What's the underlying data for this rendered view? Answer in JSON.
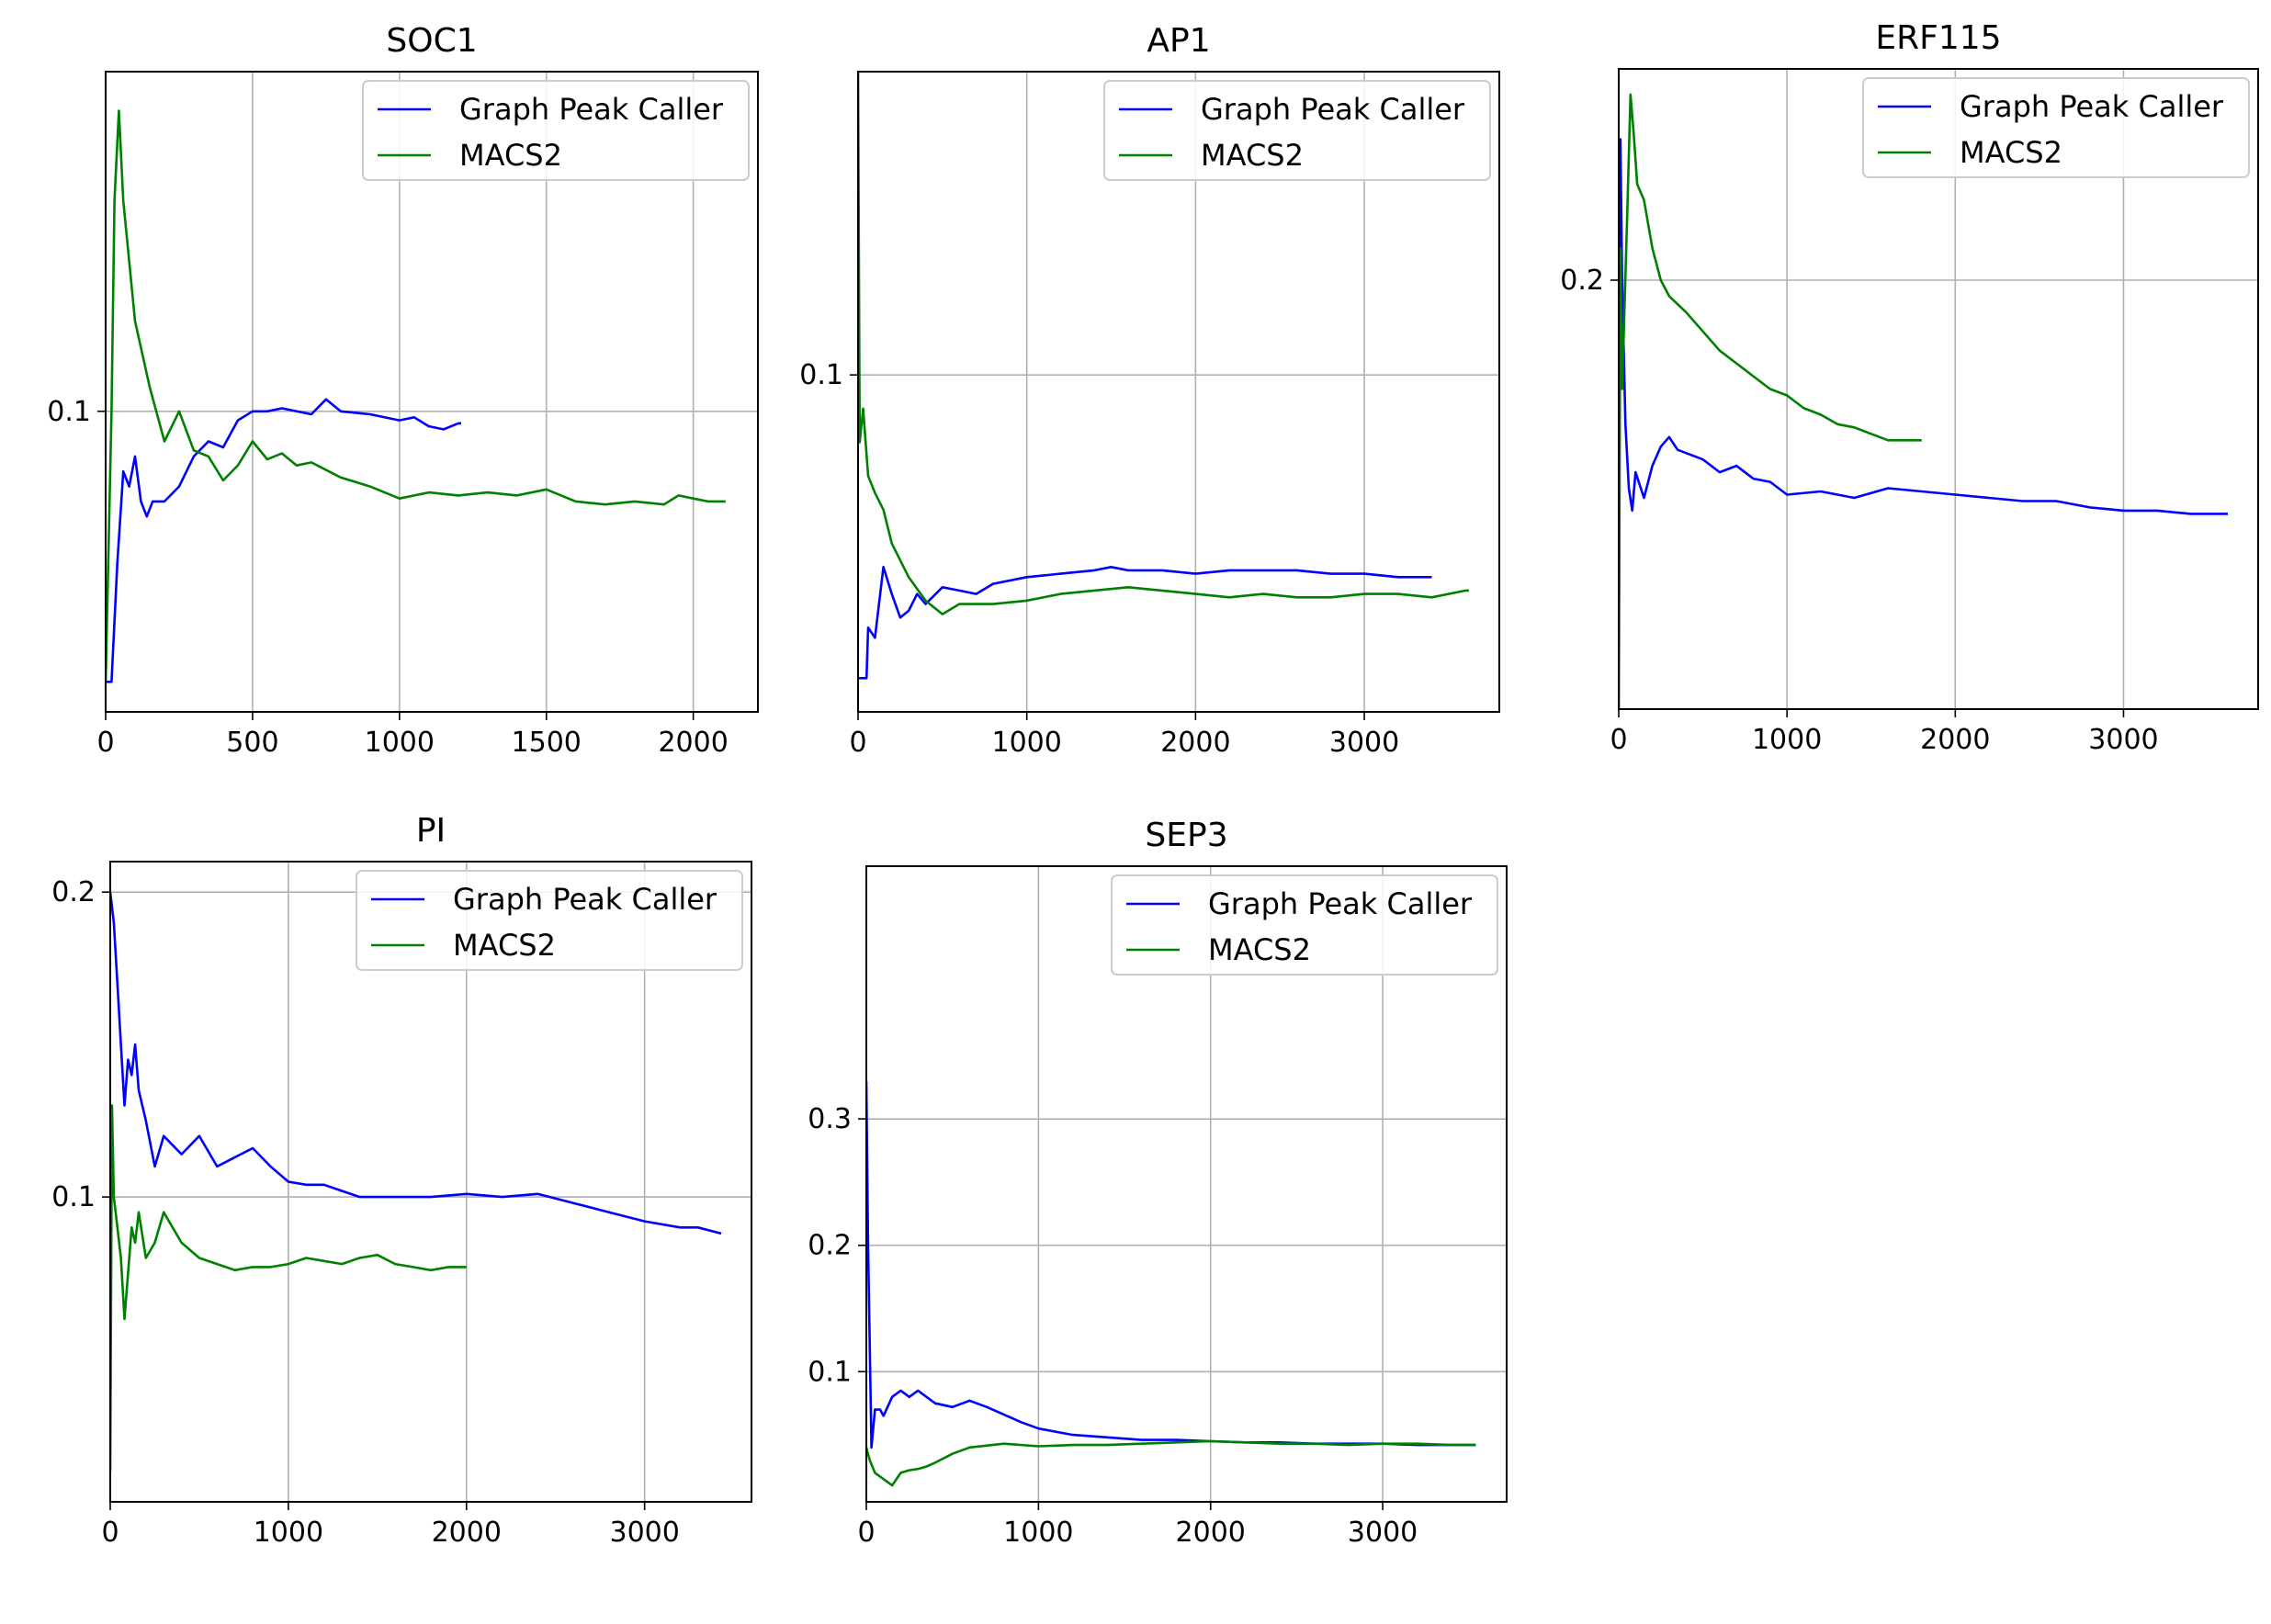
{
  "chart_data": [
    {
      "type": "line",
      "title": "SOC1",
      "xlim": [
        0,
        2220
      ],
      "ylim": [
        0.0,
        0.213
      ],
      "xticks": [
        0,
        500,
        1000,
        1500,
        2000
      ],
      "yticks": [
        0.1
      ],
      "grid": true,
      "legend": "top-right",
      "series": [
        {
          "name": "Graph Peak Caller",
          "color": "#0000ff",
          "x": [
            0,
            20,
            40,
            60,
            80,
            100,
            120,
            140,
            160,
            200,
            250,
            300,
            350,
            400,
            450,
            500,
            550,
            600,
            700,
            750,
            800,
            900,
            1000,
            1050,
            1100,
            1150,
            1200,
            1210
          ],
          "y": [
            0.01,
            0.01,
            0.05,
            0.08,
            0.075,
            0.085,
            0.07,
            0.065,
            0.07,
            0.07,
            0.075,
            0.085,
            0.09,
            0.088,
            0.097,
            0.1,
            0.1,
            0.101,
            0.099,
            0.104,
            0.1,
            0.099,
            0.097,
            0.098,
            0.095,
            0.094,
            0.096,
            0.096
          ]
        },
        {
          "name": "MACS2",
          "color": "#008000",
          "x": [
            0,
            20,
            30,
            45,
            60,
            80,
            100,
            150,
            200,
            250,
            300,
            350,
            400,
            450,
            500,
            550,
            600,
            650,
            700,
            800,
            900,
            1000,
            1100,
            1200,
            1300,
            1400,
            1500,
            1600,
            1700,
            1800,
            1900,
            1950,
            2000,
            2050,
            2110
          ],
          "y": [
            0.01,
            0.1,
            0.17,
            0.2,
            0.17,
            0.15,
            0.13,
            0.108,
            0.09,
            0.1,
            0.087,
            0.085,
            0.077,
            0.082,
            0.09,
            0.084,
            0.086,
            0.082,
            0.083,
            0.078,
            0.075,
            0.071,
            0.073,
            0.072,
            0.073,
            0.072,
            0.074,
            0.07,
            0.069,
            0.07,
            0.069,
            0.072,
            0.071,
            0.07,
            0.07
          ]
        }
      ]
    },
    {
      "type": "line",
      "title": "AP1",
      "xlim": [
        0,
        3800
      ],
      "ylim": [
        0.0,
        0.19
      ],
      "xticks": [
        0,
        1000,
        2000,
        3000
      ],
      "yticks": [
        0.1
      ],
      "grid": true,
      "legend": "top-right",
      "series": [
        {
          "name": "Graph Peak Caller",
          "color": "#0000ff",
          "x": [
            0,
            50,
            60,
            100,
            150,
            200,
            250,
            300,
            350,
            400,
            500,
            600,
            700,
            800,
            1000,
            1200,
            1400,
            1500,
            1600,
            1800,
            2000,
            2200,
            2400,
            2600,
            2800,
            3000,
            3200,
            3400
          ],
          "y": [
            0.01,
            0.01,
            0.025,
            0.022,
            0.043,
            0.035,
            0.028,
            0.03,
            0.035,
            0.032,
            0.037,
            0.036,
            0.035,
            0.038,
            0.04,
            0.041,
            0.042,
            0.043,
            0.042,
            0.042,
            0.041,
            0.042,
            0.042,
            0.042,
            0.041,
            0.041,
            0.04,
            0.04
          ]
        },
        {
          "name": "MACS2",
          "color": "#008000",
          "x": [
            0,
            10,
            30,
            60,
            100,
            150,
            200,
            250,
            300,
            400,
            500,
            600,
            800,
            1000,
            1200,
            1400,
            1600,
            1800,
            2000,
            2200,
            2400,
            2600,
            2800,
            3000,
            3200,
            3400,
            3600,
            3620
          ],
          "y": [
            0.19,
            0.08,
            0.09,
            0.07,
            0.065,
            0.06,
            0.05,
            0.045,
            0.04,
            0.033,
            0.029,
            0.032,
            0.032,
            0.033,
            0.035,
            0.036,
            0.037,
            0.036,
            0.035,
            0.034,
            0.035,
            0.034,
            0.034,
            0.035,
            0.035,
            0.034,
            0.036,
            0.036
          ]
        }
      ]
    },
    {
      "type": "line",
      "title": "ERF115",
      "xlim": [
        0,
        3800
      ],
      "ylim": [
        0.066,
        0.266
      ],
      "xticks": [
        0,
        1000,
        2000,
        3000
      ],
      "yticks": [
        0.2
      ],
      "grid": true,
      "legend": "top-right",
      "series": [
        {
          "name": "Graph Peak Caller",
          "color": "#0000ff",
          "x": [
            0,
            10,
            20,
            40,
            60,
            80,
            100,
            150,
            200,
            250,
            300,
            350,
            400,
            500,
            600,
            700,
            800,
            900,
            1000,
            1200,
            1400,
            1600,
            1800,
            2000,
            2200,
            2400,
            2600,
            2800,
            3000,
            3200,
            3400,
            3600,
            3620
          ],
          "y": [
            0.076,
            0.244,
            0.2,
            0.155,
            0.135,
            0.128,
            0.14,
            0.132,
            0.142,
            0.148,
            0.151,
            0.147,
            0.146,
            0.144,
            0.14,
            0.142,
            0.138,
            0.137,
            0.133,
            0.134,
            0.132,
            0.135,
            0.134,
            0.133,
            0.132,
            0.131,
            0.131,
            0.129,
            0.128,
            0.128,
            0.127,
            0.127,
            0.127
          ]
        },
        {
          "name": "MACS2",
          "color": "#008000",
          "x": [
            0,
            10,
            20,
            50,
            70,
            90,
            110,
            150,
            200,
            250,
            300,
            400,
            500,
            600,
            700,
            800,
            900,
            1000,
            1100,
            1200,
            1300,
            1400,
            1500,
            1600,
            1700,
            1800
          ],
          "y": [
            0.06,
            0.21,
            0.166,
            0.22,
            0.258,
            0.245,
            0.23,
            0.225,
            0.21,
            0.2,
            0.195,
            0.19,
            0.184,
            0.178,
            0.174,
            0.17,
            0.166,
            0.164,
            0.16,
            0.158,
            0.155,
            0.154,
            0.152,
            0.15,
            0.15,
            0.15
          ]
        }
      ]
    },
    {
      "type": "line",
      "title": "PI",
      "xlim": [
        0,
        3600
      ],
      "ylim": [
        0.0,
        0.21
      ],
      "xticks": [
        0,
        1000,
        2000,
        3000
      ],
      "yticks": [
        0.1,
        0.2
      ],
      "grid": true,
      "legend": "top-right",
      "series": [
        {
          "name": "Graph Peak Caller",
          "color": "#0000ff",
          "x": [
            0,
            20,
            40,
            60,
            80,
            100,
            120,
            140,
            160,
            200,
            250,
            300,
            350,
            400,
            500,
            600,
            700,
            800,
            900,
            1000,
            1100,
            1200,
            1300,
            1400,
            1500,
            1600,
            1800,
            2000,
            2200,
            2400,
            2600,
            2800,
            3000,
            3200,
            3300,
            3430
          ],
          "y": [
            0.2,
            0.19,
            0.17,
            0.15,
            0.13,
            0.145,
            0.14,
            0.15,
            0.135,
            0.125,
            0.11,
            0.12,
            0.117,
            0.114,
            0.12,
            0.11,
            0.113,
            0.116,
            0.11,
            0.105,
            0.104,
            0.104,
            0.102,
            0.1,
            0.1,
            0.1,
            0.1,
            0.101,
            0.1,
            0.101,
            0.098,
            0.095,
            0.092,
            0.09,
            0.09,
            0.088
          ]
        },
        {
          "name": "MACS2",
          "color": "#008000",
          "x": [
            0,
            10,
            20,
            40,
            60,
            80,
            100,
            120,
            140,
            160,
            200,
            250,
            300,
            350,
            400,
            500,
            600,
            700,
            800,
            900,
            1000,
            1100,
            1200,
            1300,
            1400,
            1500,
            1600,
            1700,
            1800,
            1900,
            2000
          ],
          "y": [
            0.01,
            0.13,
            0.1,
            0.09,
            0.08,
            0.06,
            0.075,
            0.09,
            0.085,
            0.095,
            0.08,
            0.085,
            0.095,
            0.09,
            0.085,
            0.08,
            0.078,
            0.076,
            0.077,
            0.077,
            0.078,
            0.08,
            0.079,
            0.078,
            0.08,
            0.081,
            0.078,
            0.077,
            0.076,
            0.077,
            0.077
          ]
        }
      ]
    },
    {
      "type": "line",
      "title": "SEP3",
      "xlim": [
        0,
        3720
      ],
      "ylim": [
        -0.003,
        0.5
      ],
      "xticks": [
        0,
        1000,
        2000,
        3000
      ],
      "yticks": [
        0.1,
        0.2,
        0.3
      ],
      "grid": true,
      "legend": "top-right",
      "series": [
        {
          "name": "Graph Peak Caller",
          "color": "#0000ff",
          "x": [
            0,
            10,
            30,
            50,
            80,
            100,
            150,
            200,
            250,
            300,
            400,
            500,
            600,
            700,
            800,
            900,
            1000,
            1200,
            1400,
            1600,
            1800,
            2000,
            2200,
            2400,
            2600,
            2800,
            3000,
            3200,
            3400,
            3540
          ],
          "y": [
            0.33,
            0.2,
            0.04,
            0.07,
            0.07,
            0.065,
            0.08,
            0.085,
            0.08,
            0.085,
            0.075,
            0.072,
            0.077,
            0.072,
            0.066,
            0.06,
            0.055,
            0.05,
            0.048,
            0.046,
            0.046,
            0.045,
            0.044,
            0.044,
            0.043,
            0.043,
            0.043,
            0.042,
            0.042,
            0.042
          ]
        },
        {
          "name": "MACS2",
          "color": "#008000",
          "x": [
            0,
            20,
            50,
            100,
            150,
            200,
            250,
            300,
            350,
            400,
            500,
            600,
            800,
            1000,
            1200,
            1400,
            1600,
            1800,
            2000,
            2200,
            2400,
            2600,
            2800,
            3000,
            3200,
            3400,
            3540
          ],
          "y": [
            0.04,
            0.03,
            0.02,
            0.015,
            0.01,
            0.02,
            0.022,
            0.023,
            0.025,
            0.028,
            0.035,
            0.04,
            0.043,
            0.041,
            0.042,
            0.042,
            0.043,
            0.044,
            0.045,
            0.044,
            0.043,
            0.043,
            0.042,
            0.043,
            0.043,
            0.042,
            0.042
          ]
        }
      ]
    }
  ]
}
